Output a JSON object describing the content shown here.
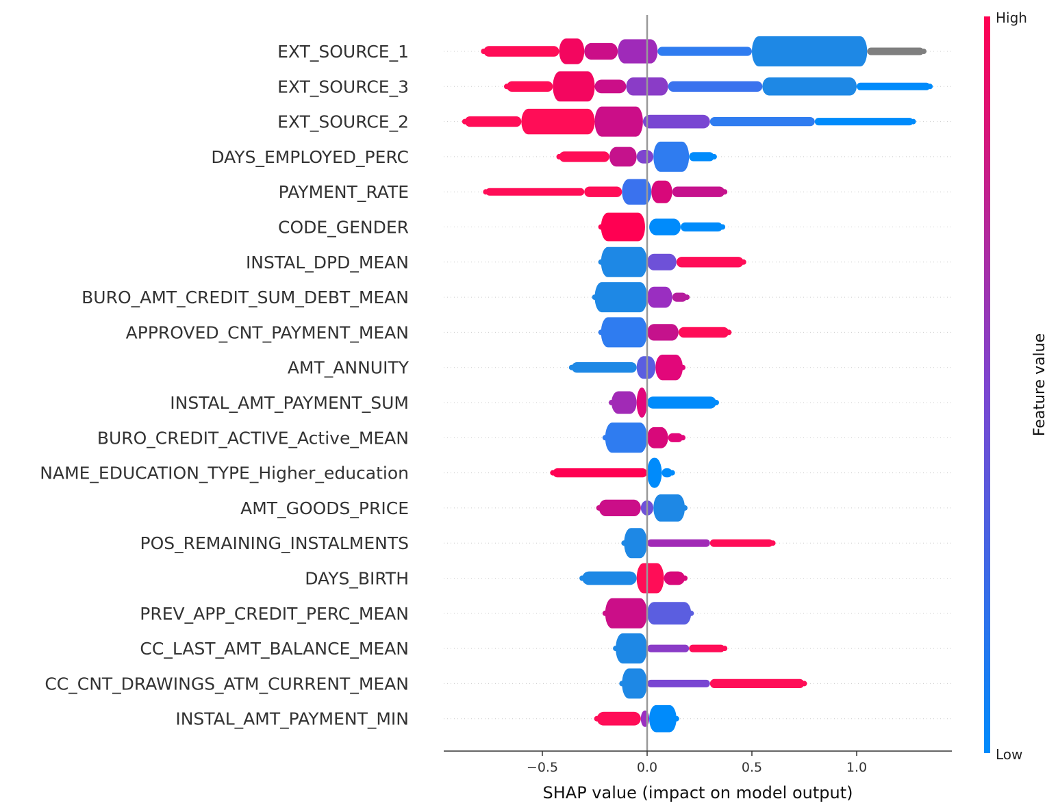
{
  "chart_data": {
    "type": "scatter",
    "subtype": "shap-beeswarm",
    "xlabel": "SHAP value (impact on model output)",
    "xticks": [
      -0.5,
      0.0,
      0.5,
      1.0
    ],
    "xtick_labels": [
      "−0.5",
      "0.0",
      "0.5",
      "1.0"
    ],
    "xlim": [
      -0.98,
      1.47
    ],
    "colorbar": {
      "title": "Feature value",
      "high_label": "High",
      "low_label": "Low",
      "high_color": "#ff0052",
      "low_color": "#008bfb"
    },
    "features": [
      {
        "name": "EXT_SOURCE_1",
        "min": -0.78,
        "max": 1.32,
        "segments": [
          {
            "from": -0.78,
            "to": -0.42,
            "color": "#ff0d57",
            "width": 0.35
          },
          {
            "from": -0.42,
            "to": -0.3,
            "color": "#f3065f",
            "width": 0.85
          },
          {
            "from": -0.3,
            "to": -0.14,
            "color": "#cb0e88",
            "width": 0.55
          },
          {
            "from": -0.14,
            "to": 0.05,
            "color": "#9f2ab9",
            "width": 0.8
          },
          {
            "from": 0.05,
            "to": 0.5,
            "color": "#2f7cf0",
            "width": 0.3
          },
          {
            "from": 0.5,
            "to": 1.05,
            "color": "#1e88e5",
            "width": 1.0
          },
          {
            "from": 1.05,
            "to": 1.32,
            "color": "#7f7f7f",
            "width": 0.25
          }
        ]
      },
      {
        "name": "EXT_SOURCE_3",
        "min": -0.67,
        "max": 1.35,
        "segments": [
          {
            "from": -0.67,
            "to": -0.45,
            "color": "#ff0d57",
            "width": 0.35
          },
          {
            "from": -0.45,
            "to": -0.25,
            "color": "#f3065f",
            "width": 1.0
          },
          {
            "from": -0.25,
            "to": -0.1,
            "color": "#cb0e88",
            "width": 0.45
          },
          {
            "from": -0.1,
            "to": 0.1,
            "color": "#8a3cc7",
            "width": 0.6
          },
          {
            "from": 0.1,
            "to": 0.55,
            "color": "#3a72ee",
            "width": 0.35
          },
          {
            "from": 0.55,
            "to": 1.0,
            "color": "#1e88e5",
            "width": 0.6
          },
          {
            "from": 1.0,
            "to": 1.35,
            "color": "#008bfb",
            "width": 0.25
          }
        ]
      },
      {
        "name": "EXT_SOURCE_2",
        "min": -0.87,
        "max": 1.27,
        "segments": [
          {
            "from": -0.87,
            "to": -0.6,
            "color": "#ff0d57",
            "width": 0.35
          },
          {
            "from": -0.6,
            "to": -0.25,
            "color": "#ff0d57",
            "width": 0.85
          },
          {
            "from": -0.25,
            "to": -0.02,
            "color": "#cb0e88",
            "width": 1.0
          },
          {
            "from": -0.02,
            "to": 0.3,
            "color": "#7946d2",
            "width": 0.45
          },
          {
            "from": 0.3,
            "to": 0.8,
            "color": "#2f7cf0",
            "width": 0.3
          },
          {
            "from": 0.8,
            "to": 1.27,
            "color": "#008bfb",
            "width": 0.25
          }
        ]
      },
      {
        "name": "DAYS_EMPLOYED_PERC",
        "min": -0.42,
        "max": 0.32,
        "segments": [
          {
            "from": -0.42,
            "to": -0.18,
            "color": "#ff0d57",
            "width": 0.35
          },
          {
            "from": -0.18,
            "to": -0.05,
            "color": "#c5128c",
            "width": 0.65
          },
          {
            "from": -0.05,
            "to": 0.03,
            "color": "#7e44cf",
            "width": 0.45
          },
          {
            "from": 0.03,
            "to": 0.2,
            "color": "#2f7cf0",
            "width": 1.0
          },
          {
            "from": 0.2,
            "to": 0.32,
            "color": "#008bfb",
            "width": 0.3
          }
        ]
      },
      {
        "name": "PAYMENT_RATE",
        "min": -0.77,
        "max": 0.37,
        "segments": [
          {
            "from": -0.77,
            "to": -0.3,
            "color": "#ff0d57",
            "width": 0.25
          },
          {
            "from": -0.3,
            "to": -0.12,
            "color": "#ff0d57",
            "width": 0.35
          },
          {
            "from": -0.12,
            "to": 0.02,
            "color": "#3a72ee",
            "width": 0.85
          },
          {
            "from": 0.02,
            "to": 0.12,
            "color": "#d8087a",
            "width": 0.75
          },
          {
            "from": 0.12,
            "to": 0.37,
            "color": "#c5128c",
            "width": 0.35
          }
        ]
      },
      {
        "name": "CODE_GENDER",
        "min": -0.22,
        "max": 0.36,
        "segments": [
          {
            "from": -0.22,
            "to": -0.01,
            "color": "#ff0052",
            "width": 0.95
          },
          {
            "from": 0.01,
            "to": 0.16,
            "color": "#008bfb",
            "width": 0.55
          },
          {
            "from": 0.16,
            "to": 0.36,
            "color": "#008bfb",
            "width": 0.3
          }
        ]
      },
      {
        "name": "INSTAL_DPD_MEAN",
        "min": -0.22,
        "max": 0.46,
        "segments": [
          {
            "from": -0.22,
            "to": 0.0,
            "color": "#1e88e5",
            "width": 1.0
          },
          {
            "from": 0.0,
            "to": 0.14,
            "color": "#6e51d8",
            "width": 0.55
          },
          {
            "from": 0.14,
            "to": 0.46,
            "color": "#ff0d57",
            "width": 0.35
          }
        ]
      },
      {
        "name": "BURO_AMT_CREDIT_SUM_DEBT_MEAN",
        "min": -0.25,
        "max": 0.19,
        "segments": [
          {
            "from": -0.25,
            "to": 0.0,
            "color": "#1e88e5",
            "width": 1.0
          },
          {
            "from": 0.0,
            "to": 0.12,
            "color": "#9a2ec1",
            "width": 0.7
          },
          {
            "from": 0.12,
            "to": 0.19,
            "color": "#b51c9d",
            "width": 0.3
          }
        ]
      },
      {
        "name": "APPROVED_CNT_PAYMENT_MEAN",
        "min": -0.22,
        "max": 0.39,
        "segments": [
          {
            "from": -0.22,
            "to": 0.0,
            "color": "#2f7cf0",
            "width": 1.0
          },
          {
            "from": 0.0,
            "to": 0.15,
            "color": "#c5128c",
            "width": 0.55
          },
          {
            "from": 0.15,
            "to": 0.39,
            "color": "#ff0d57",
            "width": 0.35
          }
        ]
      },
      {
        "name": "AMT_ANNUITY",
        "min": -0.36,
        "max": 0.17,
        "segments": [
          {
            "from": -0.36,
            "to": -0.05,
            "color": "#1e88e5",
            "width": 0.35
          },
          {
            "from": -0.05,
            "to": 0.04,
            "color": "#5b5ee0",
            "width": 0.75
          },
          {
            "from": 0.04,
            "to": 0.17,
            "color": "#e2077a",
            "width": 0.85
          }
        ]
      },
      {
        "name": "INSTAL_AMT_PAYMENT_SUM",
        "min": -0.17,
        "max": 0.33,
        "segments": [
          {
            "from": -0.17,
            "to": -0.05,
            "color": "#a12ab6",
            "width": 0.75
          },
          {
            "from": -0.05,
            "to": 0.0,
            "color": "#e2077a",
            "width": 1.0
          },
          {
            "from": 0.0,
            "to": 0.33,
            "color": "#008bfb",
            "width": 0.4
          }
        ]
      },
      {
        "name": "BURO_CREDIT_ACTIVE_Active_MEAN",
        "min": -0.2,
        "max": 0.17,
        "segments": [
          {
            "from": -0.2,
            "to": 0.0,
            "color": "#2f7cf0",
            "width": 1.0
          },
          {
            "from": 0.0,
            "to": 0.1,
            "color": "#d8087a",
            "width": 0.7
          },
          {
            "from": 0.1,
            "to": 0.17,
            "color": "#e2077a",
            "width": 0.3
          }
        ]
      },
      {
        "name": "NAME_EDUCATION_TYPE_Higher_education",
        "min": -0.45,
        "max": 0.12,
        "segments": [
          {
            "from": -0.45,
            "to": 0.0,
            "color": "#ff0052",
            "width": 0.3
          },
          {
            "from": 0.0,
            "to": 0.07,
            "color": "#008bfb",
            "width": 1.0
          },
          {
            "from": 0.07,
            "to": 0.12,
            "color": "#008bfb",
            "width": 0.3
          }
        ]
      },
      {
        "name": "AMT_GOODS_PRICE",
        "min": -0.23,
        "max": 0.18,
        "segments": [
          {
            "from": -0.23,
            "to": -0.03,
            "color": "#cb0e88",
            "width": 0.55
          },
          {
            "from": -0.03,
            "to": 0.03,
            "color": "#6e51d8",
            "width": 0.5
          },
          {
            "from": 0.03,
            "to": 0.18,
            "color": "#1e88e5",
            "width": 0.9
          }
        ]
      },
      {
        "name": "POS_REMAINING_INSTALMENTS",
        "min": -0.11,
        "max": 0.6,
        "segments": [
          {
            "from": -0.11,
            "to": 0.0,
            "color": "#1e88e5",
            "width": 1.0
          },
          {
            "from": 0.0,
            "to": 0.3,
            "color": "#a12ab6",
            "width": 0.25
          },
          {
            "from": 0.3,
            "to": 0.6,
            "color": "#ff0d57",
            "width": 0.25
          }
        ]
      },
      {
        "name": "DAYS_BIRTH",
        "min": -0.31,
        "max": 0.18,
        "segments": [
          {
            "from": -0.31,
            "to": -0.05,
            "color": "#1e88e5",
            "width": 0.45
          },
          {
            "from": -0.05,
            "to": 0.08,
            "color": "#ff0d57",
            "width": 1.0
          },
          {
            "from": 0.08,
            "to": 0.18,
            "color": "#d8087a",
            "width": 0.45
          }
        ]
      },
      {
        "name": "PREV_APP_CREDIT_PERC_MEAN",
        "min": -0.2,
        "max": 0.21,
        "segments": [
          {
            "from": -0.2,
            "to": 0.0,
            "color": "#cb0e88",
            "width": 1.0
          },
          {
            "from": 0.0,
            "to": 0.21,
            "color": "#5b5ee0",
            "width": 0.75
          }
        ]
      },
      {
        "name": "CC_LAST_AMT_BALANCE_MEAN",
        "min": -0.15,
        "max": 0.37,
        "segments": [
          {
            "from": -0.15,
            "to": 0.0,
            "color": "#1e88e5",
            "width": 1.0
          },
          {
            "from": 0.0,
            "to": 0.2,
            "color": "#8a3cc7",
            "width": 0.25
          },
          {
            "from": 0.2,
            "to": 0.37,
            "color": "#ff0d57",
            "width": 0.25
          }
        ]
      },
      {
        "name": "CC_CNT_DRAWINGS_ATM_CURRENT_MEAN",
        "min": -0.12,
        "max": 0.75,
        "segments": [
          {
            "from": -0.12,
            "to": 0.0,
            "color": "#1e88e5",
            "width": 1.0
          },
          {
            "from": 0.0,
            "to": 0.3,
            "color": "#7946d2",
            "width": 0.25
          },
          {
            "from": 0.3,
            "to": 0.75,
            "color": "#ff0d57",
            "width": 0.3
          }
        ]
      },
      {
        "name": "INSTAL_AMT_PAYMENT_MIN",
        "min": -0.24,
        "max": 0.14,
        "segments": [
          {
            "from": -0.24,
            "to": -0.03,
            "color": "#ff0d57",
            "width": 0.45
          },
          {
            "from": -0.03,
            "to": 0.01,
            "color": "#9a2ec1",
            "width": 0.55
          },
          {
            "from": 0.01,
            "to": 0.14,
            "color": "#008bfb",
            "width": 0.9
          }
        ]
      }
    ]
  }
}
